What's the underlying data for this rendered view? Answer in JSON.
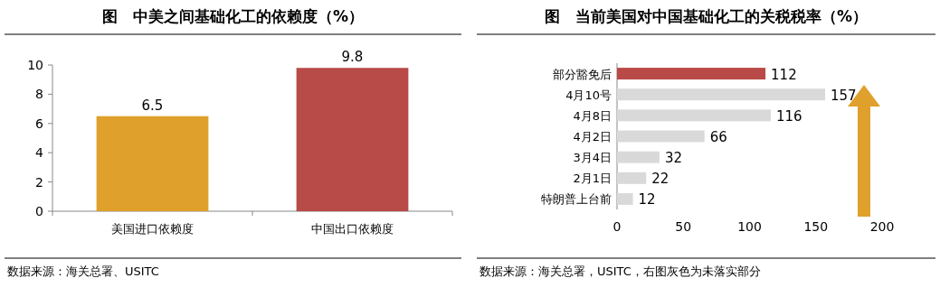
{
  "chart_data": [
    {
      "type": "bar",
      "title": "图　中美之间基础化工的依赖度（%）",
      "categories": [
        "美国进口依赖度",
        "中国出口依赖度"
      ],
      "values": [
        6.5,
        9.8
      ],
      "colors": [
        "#e0a02c",
        "#b84a47"
      ],
      "ylim": [
        0,
        10
      ],
      "yticks": [
        0,
        2,
        4,
        6,
        8,
        10
      ],
      "data_labels": true,
      "annotations": [
        "数据来源：海关总署、USITC"
      ]
    },
    {
      "type": "bar",
      "orientation": "horizontal",
      "title": "图　当前美国对中国基础化工的关税税率（%）",
      "categories": [
        "部分豁免后",
        "4月10号",
        "4月8日",
        "4月2日",
        "3月4日",
        "2月1日",
        "特朗普上台前"
      ],
      "values": [
        112,
        157,
        116,
        66,
        32,
        22,
        12
      ],
      "colors": [
        "#b84a47",
        "#d9d9d9",
        "#d9d9d9",
        "#d9d9d9",
        "#d9d9d9",
        "#d9d9d9",
        "#d9d9d9"
      ],
      "xlim": [
        0,
        200
      ],
      "xticks": [
        0,
        50,
        100,
        150,
        200
      ],
      "data_labels": true,
      "annotations": [
        "数据来源：海关总署，USITC，右图灰色为未落实部分"
      ]
    }
  ]
}
